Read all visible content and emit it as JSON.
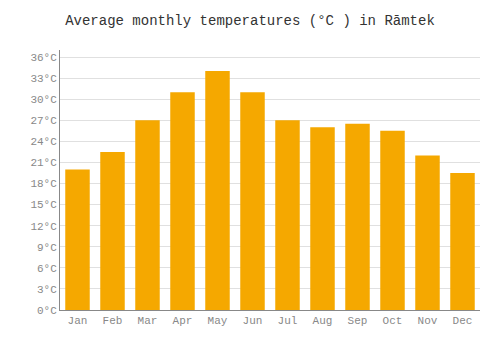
{
  "chart_data": {
    "type": "bar",
    "title": "Average monthly temperatures (°C ) in Rāmtek",
    "categories": [
      "Jan",
      "Feb",
      "Mar",
      "Apr",
      "May",
      "Jun",
      "Jul",
      "Aug",
      "Sep",
      "Oct",
      "Nov",
      "Dec"
    ],
    "values": [
      20.0,
      22.5,
      27.0,
      31.0,
      34.0,
      31.0,
      27.0,
      26.0,
      26.5,
      25.5,
      22.0,
      19.5
    ],
    "color": "#F5A800",
    "ylim": [
      0,
      37
    ],
    "yticks": [
      {
        "value": 0,
        "label": "0°C"
      },
      {
        "value": 3,
        "label": "3°C"
      },
      {
        "value": 6,
        "label": "6°C"
      },
      {
        "value": 9,
        "label": "9°C"
      },
      {
        "value": 12,
        "label": "12°C"
      },
      {
        "value": 15,
        "label": "15°C"
      },
      {
        "value": 18,
        "label": "18°C"
      },
      {
        "value": 21,
        "label": "21°C"
      },
      {
        "value": 24,
        "label": "24°C"
      },
      {
        "value": 27,
        "label": "27°C"
      },
      {
        "value": 30,
        "label": "30°C"
      },
      {
        "value": 33,
        "label": "33°C"
      },
      {
        "value": 36,
        "label": "36°C"
      }
    ],
    "grid": true
  }
}
